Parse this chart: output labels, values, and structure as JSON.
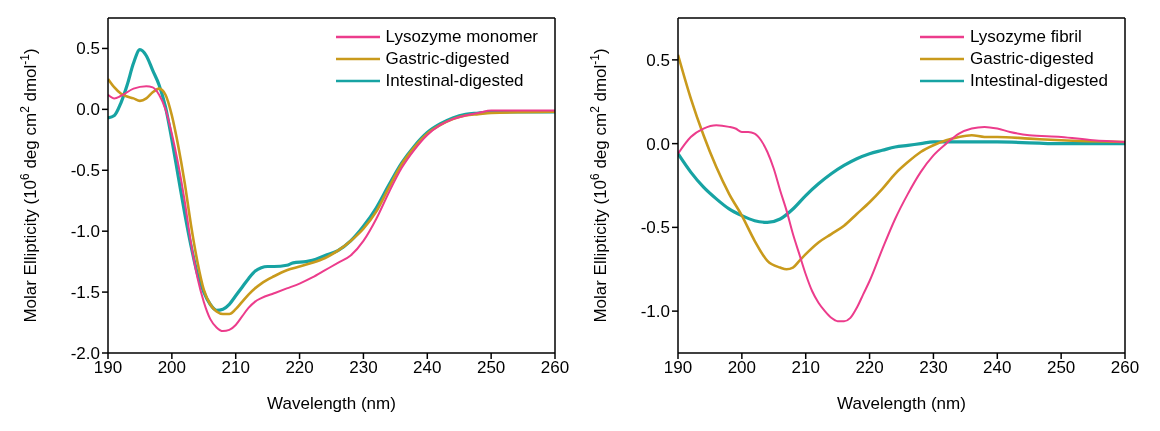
{
  "chart_data": [
    {
      "type": "line",
      "xlabel": "Wavelength (nm)",
      "ylabel": "Molar Ellipticity (10$^{6}$ deg cm$^{2}$ dmol$^{-1}$)",
      "xlim": [
        190,
        260
      ],
      "xticks": [
        190,
        200,
        210,
        220,
        230,
        240,
        250,
        260
      ],
      "ylim": [
        -2.0,
        0.75
      ],
      "yticks": [
        {
          "value": -2.0,
          "label": "-2.0"
        },
        {
          "value": -1.5,
          "label": "-1.5"
        },
        {
          "value": -1.0,
          "label": "-1.0"
        },
        {
          "value": -0.5,
          "label": "-0.5"
        },
        {
          "value": 0,
          "label": "0.0"
        },
        {
          "value": 0.5,
          "label": "0.5"
        }
      ],
      "legend": "top right",
      "grid": false,
      "marker": "none",
      "line_style": "solid",
      "series": [
        {
          "name": "Lysozyme monomer",
          "color": "#ec3c8c",
          "x": [
            190,
            191,
            192,
            194,
            196,
            197,
            198,
            199,
            200,
            201,
            202,
            203,
            204,
            205,
            206,
            207,
            208,
            209,
            210,
            211,
            212,
            213,
            214,
            216,
            218,
            220,
            222,
            224,
            226,
            228,
            230,
            232,
            234,
            236,
            238,
            240,
            242,
            244,
            246,
            248,
            250,
            255,
            260
          ],
          "values": [
            0.12,
            0.09,
            0.11,
            0.17,
            0.19,
            0.18,
            0.12,
            0.0,
            -0.2,
            -0.45,
            -0.75,
            -1.1,
            -1.38,
            -1.58,
            -1.72,
            -1.79,
            -1.82,
            -1.81,
            -1.77,
            -1.7,
            -1.63,
            -1.58,
            -1.55,
            -1.51,
            -1.47,
            -1.43,
            -1.38,
            -1.32,
            -1.26,
            -1.2,
            -1.08,
            -0.9,
            -0.68,
            -0.48,
            -0.33,
            -0.21,
            -0.13,
            -0.08,
            -0.05,
            -0.03,
            -0.01,
            -0.01,
            -0.01
          ]
        },
        {
          "name": "Gastric-digested",
          "color": "#c99a1c",
          "x": [
            190,
            191,
            192,
            194,
            195,
            196,
            197,
            198,
            199,
            200,
            201,
            202,
            203,
            204,
            205,
            206,
            207,
            208,
            209,
            210,
            211,
            212,
            213,
            214,
            216,
            218,
            220,
            222,
            224,
            226,
            228,
            230,
            232,
            234,
            236,
            238,
            240,
            242,
            244,
            246,
            248,
            250,
            260
          ],
          "values": [
            0.25,
            0.18,
            0.13,
            0.09,
            0.07,
            0.09,
            0.14,
            0.17,
            0.12,
            -0.05,
            -0.3,
            -0.6,
            -0.95,
            -1.25,
            -1.48,
            -1.6,
            -1.66,
            -1.68,
            -1.68,
            -1.64,
            -1.58,
            -1.52,
            -1.47,
            -1.43,
            -1.37,
            -1.32,
            -1.29,
            -1.26,
            -1.22,
            -1.16,
            -1.08,
            -0.98,
            -0.84,
            -0.64,
            -0.45,
            -0.31,
            -0.2,
            -0.13,
            -0.08,
            -0.05,
            -0.04,
            -0.03,
            -0.02
          ]
        },
        {
          "name": "Intestinal-digested",
          "color": "#17a3a3",
          "x": [
            190,
            191,
            192,
            193,
            194,
            195,
            196,
            197,
            198,
            199,
            200,
            201,
            202,
            203,
            204,
            205,
            206,
            207,
            208,
            209,
            210,
            211,
            212,
            213,
            214,
            215,
            216,
            218,
            219,
            221,
            222,
            224,
            226,
            228,
            230,
            232,
            234,
            236,
            238,
            240,
            242,
            244,
            246,
            248,
            250,
            260
          ],
          "values": [
            -0.07,
            -0.05,
            0.05,
            0.2,
            0.38,
            0.49,
            0.44,
            0.32,
            0.2,
            0.02,
            -0.25,
            -0.55,
            -0.85,
            -1.12,
            -1.35,
            -1.5,
            -1.6,
            -1.65,
            -1.64,
            -1.6,
            -1.53,
            -1.46,
            -1.39,
            -1.33,
            -1.3,
            -1.29,
            -1.29,
            -1.28,
            -1.26,
            -1.25,
            -1.24,
            -1.2,
            -1.16,
            -1.08,
            -0.96,
            -0.81,
            -0.62,
            -0.44,
            -0.3,
            -0.19,
            -0.12,
            -0.07,
            -0.04,
            -0.03,
            -0.02,
            -0.02
          ]
        }
      ]
    },
    {
      "type": "line",
      "xlabel": "Wavelength (nm)",
      "ylabel": "Molar Ellipticity (10$^{6}$ deg cm$^{2}$ dmol$^{-1}$)",
      "xlim": [
        190,
        260
      ],
      "xticks": [
        190,
        200,
        210,
        220,
        230,
        240,
        250,
        260
      ],
      "ylim": [
        -1.25,
        0.75
      ],
      "yticks": [
        {
          "value": -1.0,
          "label": "-1.0"
        },
        {
          "value": -0.5,
          "label": "-0.5"
        },
        {
          "value": 0,
          "label": "0.0"
        },
        {
          "value": 0.5,
          "label": "0.5"
        }
      ],
      "legend": "top right",
      "grid": false,
      "marker": "none",
      "line_style": "solid",
      "series": [
        {
          "name": "Lysozyme fibril",
          "color": "#ec3c8c",
          "x": [
            190,
            192,
            194,
            196,
            198,
            199,
            200,
            201,
            202,
            203,
            204,
            205,
            206,
            207,
            208,
            209,
            210,
            211,
            212,
            213,
            214,
            215,
            216,
            217,
            218,
            219,
            220,
            222,
            224,
            226,
            228,
            230,
            232,
            234,
            236,
            238,
            240,
            242,
            245,
            250,
            255,
            260
          ],
          "values": [
            -0.06,
            0.04,
            0.09,
            0.11,
            0.1,
            0.09,
            0.07,
            0.07,
            0.06,
            0.02,
            -0.05,
            -0.15,
            -0.28,
            -0.4,
            -0.54,
            -0.66,
            -0.78,
            -0.88,
            -0.95,
            -1.0,
            -1.04,
            -1.06,
            -1.06,
            -1.04,
            -0.98,
            -0.9,
            -0.82,
            -0.63,
            -0.45,
            -0.3,
            -0.17,
            -0.07,
            0.0,
            0.06,
            0.09,
            0.1,
            0.09,
            0.07,
            0.05,
            0.04,
            0.02,
            0.01
          ]
        },
        {
          "name": "Gastric-digested",
          "color": "#c99a1c",
          "x": [
            190,
            192,
            194,
            196,
            198,
            200,
            202,
            204,
            206,
            207,
            208,
            209,
            210,
            212,
            214,
            216,
            218,
            220,
            222,
            224,
            226,
            228,
            230,
            232,
            234,
            236,
            238,
            240,
            245,
            250,
            260
          ],
          "values": [
            0.53,
            0.27,
            0.05,
            -0.14,
            -0.3,
            -0.43,
            -0.58,
            -0.7,
            -0.74,
            -0.75,
            -0.74,
            -0.7,
            -0.66,
            -0.59,
            -0.54,
            -0.49,
            -0.42,
            -0.35,
            -0.27,
            -0.18,
            -0.11,
            -0.05,
            -0.01,
            0.02,
            0.04,
            0.05,
            0.04,
            0.04,
            0.03,
            0.02,
            0.01
          ]
        },
        {
          "name": "Intestinal-digested",
          "color": "#17a3a3",
          "x": [
            190,
            192,
            194,
            196,
            198,
            200,
            202,
            204,
            206,
            208,
            210,
            212,
            214,
            216,
            218,
            220,
            222,
            224,
            226,
            228,
            230,
            235,
            240,
            250,
            260
          ],
          "values": [
            -0.06,
            -0.17,
            -0.26,
            -0.33,
            -0.39,
            -0.43,
            -0.46,
            -0.47,
            -0.45,
            -0.39,
            -0.31,
            -0.24,
            -0.18,
            -0.13,
            -0.09,
            -0.06,
            -0.04,
            -0.02,
            -0.01,
            0.0,
            0.01,
            0.01,
            0.01,
            0.0,
            0.0
          ]
        }
      ]
    }
  ]
}
